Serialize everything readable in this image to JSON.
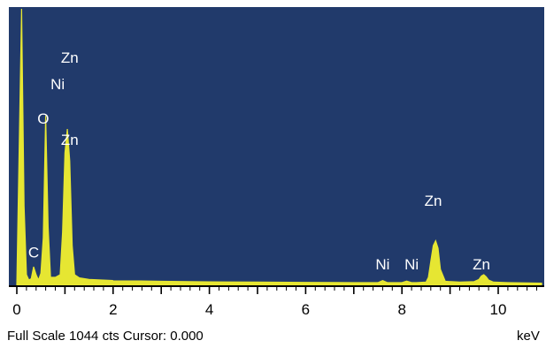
{
  "status": {
    "full_scale_label": "Full Scale 1044 cts Cursor: 0.000",
    "unit_label": "keV"
  },
  "colors": {
    "panel": "#213a6b",
    "spectrum": "#e6e632",
    "peak_text": "#ffffff",
    "axis": "#000000"
  },
  "chart_data": {
    "type": "line",
    "title": "",
    "xlabel": "keV",
    "ylabel": "",
    "xlim": [
      0,
      10.9
    ],
    "ylim": [
      0,
      1044
    ],
    "grid": false,
    "x_ticks": [
      0,
      2,
      4,
      6,
      8,
      10
    ],
    "series": [
      {
        "values_note_removed": true,
        "x": [
          0.0,
          0.1,
          0.15,
          0.2,
          0.25,
          0.3,
          0.35,
          0.4,
          0.45,
          0.5,
          0.55,
          0.6,
          0.65,
          0.7,
          0.8,
          0.9,
          0.95,
          1.0,
          1.05,
          1.1,
          1.15,
          1.2,
          1.3,
          1.5,
          2.0,
          3.0,
          4.0,
          5.0,
          6.0,
          7.0,
          7.5,
          7.6,
          7.7,
          7.8,
          8.0,
          8.1,
          8.2,
          8.3,
          8.5,
          8.55,
          8.6,
          8.65,
          8.7,
          8.75,
          8.8,
          8.9,
          9.2,
          9.5,
          9.6,
          9.65,
          9.7,
          9.75,
          9.8,
          9.9,
          10.2,
          10.9
        ],
        "y": [
          0,
          1044,
          300,
          40,
          20,
          25,
          70,
          40,
          20,
          45,
          180,
          640,
          220,
          30,
          30,
          40,
          200,
          500,
          590,
          470,
          150,
          40,
          28,
          22,
          18,
          15,
          13,
          12,
          11,
          10,
          10,
          18,
          10,
          10,
          10,
          16,
          10,
          10,
          12,
          30,
          90,
          150,
          168,
          140,
          60,
          15,
          12,
          14,
          22,
          35,
          40,
          32,
          20,
          12,
          10,
          8
        ]
      }
    ],
    "annotations": [
      {
        "text": "Zn",
        "x": 1.1,
        "y": 840
      },
      {
        "text": "Ni",
        "x": 0.85,
        "y": 740
      },
      {
        "text": "O",
        "x": 0.55,
        "y": 610
      },
      {
        "text": "Zn",
        "x": 1.1,
        "y": 530
      },
      {
        "text": "C",
        "x": 0.35,
        "y": 105
      },
      {
        "text": "Ni",
        "x": 7.6,
        "y": 60
      },
      {
        "text": "Ni",
        "x": 8.2,
        "y": 60
      },
      {
        "text": "Zn",
        "x": 8.65,
        "y": 300
      },
      {
        "text": "Zn",
        "x": 9.65,
        "y": 60
      }
    ]
  }
}
